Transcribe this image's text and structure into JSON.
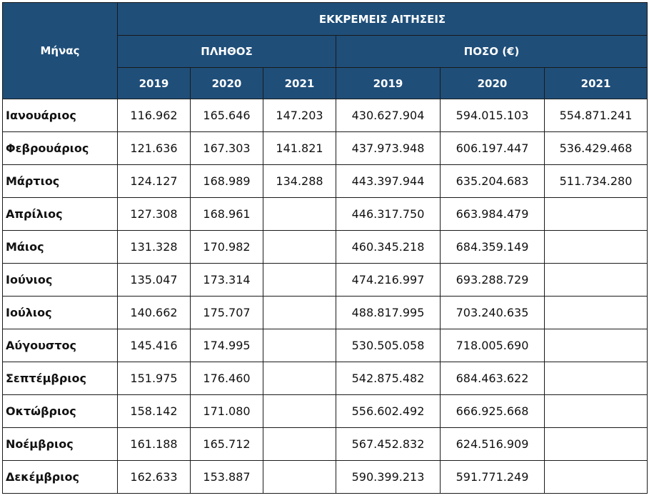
{
  "header": {
    "month_label": "Μήνας",
    "group_title": "ΕΚΚΡΕΜΕΙΣ ΑΙΤΗΣΕΙΣ",
    "count_label": "ΠΛΗΘΟΣ",
    "amount_label": "ΠΟΣΟ (€)",
    "years": [
      "2019",
      "2020",
      "2021"
    ]
  },
  "rows": [
    {
      "month": "Ιανουάριος",
      "count": [
        "116.962",
        "165.646",
        "147.203"
      ],
      "amount": [
        "430.627.904",
        "594.015.103",
        "554.871.241"
      ]
    },
    {
      "month": "Φεβρουάριος",
      "count": [
        "121.636",
        "167.303",
        "141.821"
      ],
      "amount": [
        "437.973.948",
        "606.197.447",
        "536.429.468"
      ]
    },
    {
      "month": "Μάρτιος",
      "count": [
        "124.127",
        "168.989",
        "134.288"
      ],
      "amount": [
        "443.397.944",
        "635.204.683",
        "511.734.280"
      ]
    },
    {
      "month": "Απρίλιος",
      "count": [
        "127.308",
        "168.961",
        ""
      ],
      "amount": [
        "446.317.750",
        "663.984.479",
        ""
      ]
    },
    {
      "month": "Μάιος",
      "count": [
        "131.328",
        "170.982",
        ""
      ],
      "amount": [
        "460.345.218",
        "684.359.149",
        ""
      ]
    },
    {
      "month": "Ιούνιος",
      "count": [
        "135.047",
        "173.314",
        ""
      ],
      "amount": [
        "474.216.997",
        "693.288.729",
        ""
      ]
    },
    {
      "month": "Ιούλιος",
      "count": [
        "140.662",
        "175.707",
        ""
      ],
      "amount": [
        "488.817.995",
        "703.240.635",
        ""
      ]
    },
    {
      "month": "Αύγουστος",
      "count": [
        "145.416",
        "174.995",
        ""
      ],
      "amount": [
        "530.505.058",
        "718.005.690",
        ""
      ]
    },
    {
      "month": "Σεπτέμβριος",
      "count": [
        "151.975",
        "176.460",
        ""
      ],
      "amount": [
        "542.875.482",
        "684.463.622",
        ""
      ]
    },
    {
      "month": "Οκτώβριος",
      "count": [
        "158.142",
        "171.080",
        ""
      ],
      "amount": [
        "556.602.492",
        "666.925.668",
        ""
      ]
    },
    {
      "month": "Νοέμβριος",
      "count": [
        "161.188",
        "165.712",
        ""
      ],
      "amount": [
        "567.452.832",
        "624.516.909",
        ""
      ]
    },
    {
      "month": "Δεκέμβριος",
      "count": [
        "162.633",
        "153.887",
        ""
      ],
      "amount": [
        "590.399.213",
        "591.771.249",
        ""
      ]
    }
  ]
}
